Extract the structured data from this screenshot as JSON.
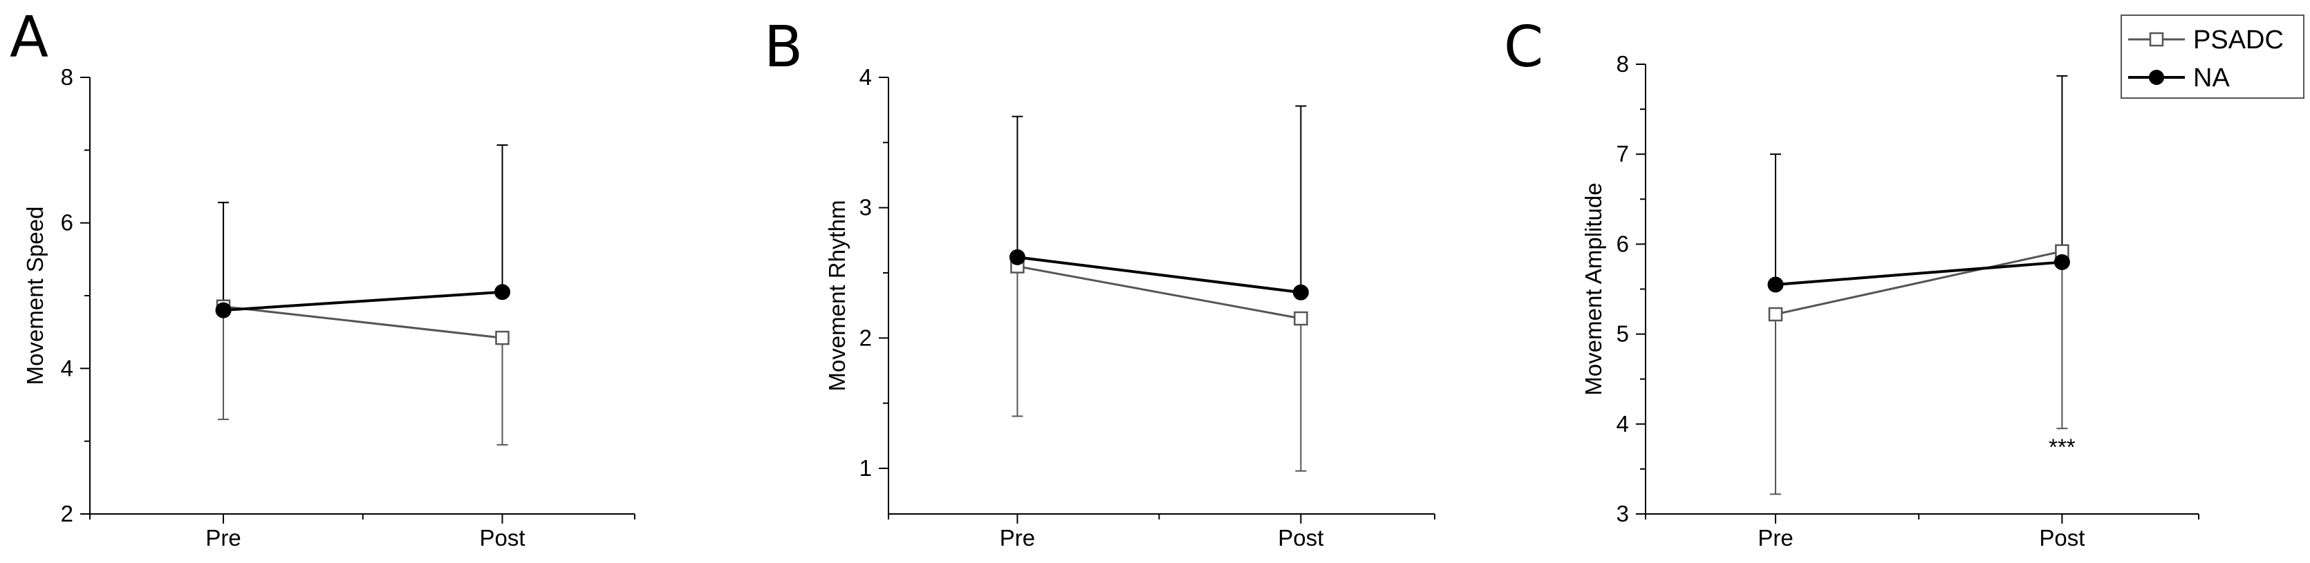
{
  "chart_data": [
    {
      "panel": "A",
      "type": "line",
      "categories": [
        "Pre",
        "Post"
      ],
      "ylabel": "Movement Speed",
      "ylim": [
        2,
        8
      ],
      "yticks": [
        2,
        4,
        6,
        8
      ],
      "series": [
        {
          "name": "PSADC",
          "values": [
            4.85,
            4.42
          ],
          "error_low": [
            3.3,
            2.95
          ],
          "error_high": [
            6.28,
            4.42
          ]
        },
        {
          "name": "NA",
          "values": [
            4.8,
            5.05
          ],
          "error_low": [
            4.8,
            5.05
          ],
          "error_high": [
            6.28,
            7.07
          ]
        }
      ],
      "annotations": []
    },
    {
      "panel": "B",
      "type": "line",
      "categories": [
        "Pre",
        "Post"
      ],
      "ylabel": "Movement Rhythm",
      "ylim": [
        0.65,
        4
      ],
      "yticks": [
        1,
        2,
        3,
        4
      ],
      "series": [
        {
          "name": "PSADC",
          "values": [
            2.55,
            2.15
          ],
          "error_low": [
            1.4,
            0.98
          ],
          "error_high": [
            2.55,
            2.15
          ]
        },
        {
          "name": "NA",
          "values": [
            2.62,
            2.35
          ],
          "error_low": [
            2.62,
            2.35
          ],
          "error_high": [
            3.7,
            3.78
          ]
        }
      ],
      "annotations": []
    },
    {
      "panel": "C",
      "type": "line",
      "categories": [
        "Pre",
        "Post"
      ],
      "ylabel": "Movement Amplitude",
      "ylim": [
        3,
        8
      ],
      "yticks": [
        3,
        4,
        5,
        6,
        7,
        8
      ],
      "series": [
        {
          "name": "PSADC",
          "values": [
            5.22,
            5.92
          ],
          "error_low": [
            3.22,
            3.95
          ],
          "error_high": [
            5.22,
            5.92
          ]
        },
        {
          "name": "NA",
          "values": [
            5.55,
            5.8
          ],
          "error_low": [
            5.55,
            5.8
          ],
          "error_high": [
            7.0,
            7.87
          ]
        }
      ],
      "annotations": [
        {
          "text": "***",
          "category": "Post",
          "y": 3.75
        }
      ]
    }
  ],
  "legend": {
    "position": "top-right",
    "entries": [
      {
        "name": "PSADC",
        "marker": "open-square",
        "color": "#555555"
      },
      {
        "name": "NA",
        "marker": "filled-circle",
        "color": "#000000"
      }
    ]
  },
  "colors": {
    "psadc": "#555555",
    "na": "#000000",
    "marker_fill_open": "#ffffff"
  }
}
